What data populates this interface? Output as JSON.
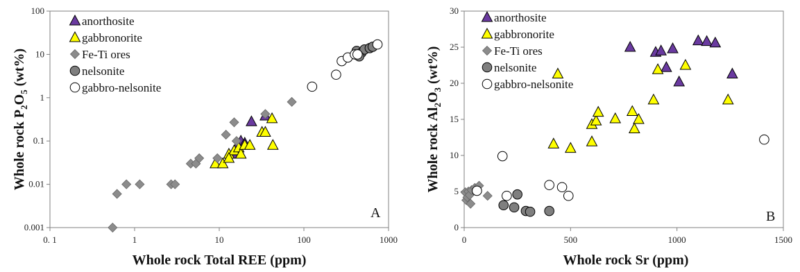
{
  "colors": {
    "anorthosite": "#6a3aa0",
    "gabbronorite": "#ffff00",
    "fe_ti_ores": "#8c8c8c",
    "nelsonite": "#7f7f7f",
    "gabbro_nelsonite": "#ffffff",
    "outline": "#000000"
  },
  "chart_data": [
    {
      "type": "scatter",
      "panel": "A",
      "xlabel": "Whole rock Total  REE (ppm)",
      "ylabel": "Whole rock  P2O5 (wt%)",
      "ylabel_parts": {
        "prefix": "Whole rock  P",
        "sub1": "2",
        "mid": "O",
        "sub2": "5",
        "suffix": " (wt%)"
      },
      "xscale": "log",
      "yscale": "log",
      "xlim": [
        0.1,
        1000
      ],
      "ylim": [
        0.001,
        100
      ],
      "x_ticks": [
        "0. 1",
        "1",
        "10",
        "100",
        "1000"
      ],
      "y_ticks": [
        "0.001",
        "0.01",
        "0.1",
        "1",
        "10",
        "100"
      ],
      "legend": [
        "anorthosite",
        "gabbronorite",
        "Fe-Ti ores",
        "nelsonite",
        "gabbro-nelsonite"
      ],
      "legend_position": "top-left",
      "series": [
        {
          "name": "anorthosite",
          "marker": "triangle",
          "color_key": "anorthosite",
          "points": [
            [
              24,
              0.28
            ],
            [
              35,
              0.38
            ],
            [
              18,
              0.1
            ],
            [
              20,
              0.09
            ],
            [
              16,
              0.07
            ],
            [
              15,
              0.05
            ]
          ]
        },
        {
          "name": "gabbronorite",
          "marker": "triangle",
          "color_key": "gabbronorite",
          "points": [
            [
              9,
              0.03
            ],
            [
              11,
              0.03
            ],
            [
              13,
              0.05
            ],
            [
              15,
              0.06
            ],
            [
              17,
              0.07
            ],
            [
              18,
              0.05
            ],
            [
              20,
              0.08
            ],
            [
              23,
              0.08
            ],
            [
              32,
              0.16
            ],
            [
              35,
              0.16
            ],
            [
              42,
              0.33
            ],
            [
              43,
              0.08
            ],
            [
              13,
              0.04
            ]
          ]
        },
        {
          "name": "Fe-Ti ores",
          "marker": "diamond",
          "color_key": "fe_ti_ores",
          "points": [
            [
              0.55,
              0.001
            ],
            [
              0.62,
              0.006
            ],
            [
              0.8,
              0.01
            ],
            [
              1.15,
              0.01
            ],
            [
              2.7,
              0.01
            ],
            [
              3.0,
              0.01
            ],
            [
              4.6,
              0.03
            ],
            [
              5.3,
              0.03
            ],
            [
              5.8,
              0.04
            ],
            [
              9.5,
              0.04
            ],
            [
              12,
              0.14
            ],
            [
              15,
              0.27
            ],
            [
              35,
              0.42
            ],
            [
              72,
              0.8
            ],
            [
              16,
              0.1
            ]
          ]
        },
        {
          "name": "nelsonite",
          "marker": "circle",
          "color_key": "nelsonite",
          "points": [
            [
              420,
              12
            ],
            [
              480,
              11
            ],
            [
              520,
              13
            ],
            [
              600,
              14
            ],
            [
              650,
              15
            ],
            [
              450,
              9
            ]
          ]
        },
        {
          "name": "gabbro-nelsonite",
          "marker": "circle",
          "color_key": "gabbro_nelsonite",
          "points": [
            [
              125,
              1.8
            ],
            [
              240,
              3.4
            ],
            [
              280,
              7
            ],
            [
              330,
              8.5
            ],
            [
              400,
              10
            ],
            [
              430,
              10
            ],
            [
              740,
              17
            ]
          ]
        }
      ]
    },
    {
      "type": "scatter",
      "panel": "B",
      "xlabel": "Whole rock  Sr (ppm)",
      "ylabel": "Whole rock  Al2O3 (wt%)",
      "ylabel_parts": {
        "prefix": "Whole rock  Al",
        "sub1": "2",
        "mid": "O",
        "sub2": "3",
        "suffix": " (wt%)"
      },
      "xscale": "linear",
      "yscale": "linear",
      "xlim": [
        0,
        1500
      ],
      "ylim": [
        0,
        30
      ],
      "x_ticks": [
        "0",
        "500",
        "1000",
        "1500"
      ],
      "y_ticks": [
        "0",
        "5",
        "10",
        "15",
        "20",
        "25",
        "30"
      ],
      "legend": [
        "anorthosite",
        "gabbronorite",
        "Fe-Ti ores",
        "nelsonite",
        "gabbro-nelsonite"
      ],
      "legend_position": "top-left",
      "series": [
        {
          "name": "anorthosite",
          "marker": "triangle",
          "color_key": "anorthosite",
          "points": [
            [
              780,
              25
            ],
            [
              900,
              24.3
            ],
            [
              925,
              24.5
            ],
            [
              950,
              22.2
            ],
            [
              980,
              24.8
            ],
            [
              1010,
              20.2
            ],
            [
              1100,
              25.9
            ],
            [
              1140,
              25.8
            ],
            [
              1180,
              25.6
            ],
            [
              1260,
              21.3
            ]
          ]
        },
        {
          "name": "gabbronorite",
          "marker": "triangle",
          "color_key": "gabbronorite",
          "points": [
            [
              440,
              21.3
            ],
            [
              420,
              11.6
            ],
            [
              500,
              11
            ],
            [
              600,
              11.9
            ],
            [
              600,
              14.3
            ],
            [
              620,
              14.8
            ],
            [
              630,
              16
            ],
            [
              710,
              15.1
            ],
            [
              790,
              16.1
            ],
            [
              800,
              13.7
            ],
            [
              820,
              15
            ],
            [
              890,
              17.7
            ],
            [
              910,
              21.9
            ],
            [
              1040,
              22.5
            ],
            [
              1240,
              17.7
            ]
          ]
        },
        {
          "name": "Fe-Ti ores",
          "marker": "diamond",
          "color_key": "fe_ti_ores",
          "points": [
            [
              5,
              4.9
            ],
            [
              10,
              3.8
            ],
            [
              15,
              4.2
            ],
            [
              20,
              5
            ],
            [
              25,
              4.5
            ],
            [
              30,
              3.3
            ],
            [
              35,
              5.2
            ],
            [
              50,
              5.5
            ],
            [
              70,
              5.8
            ],
            [
              110,
              4.4
            ]
          ]
        },
        {
          "name": "nelsonite",
          "marker": "circle",
          "color_key": "nelsonite",
          "points": [
            [
              185,
              3.1
            ],
            [
              235,
              2.8
            ],
            [
              250,
              4.6
            ],
            [
              290,
              2.3
            ],
            [
              310,
              2.2
            ],
            [
              400,
              2.3
            ]
          ]
        },
        {
          "name": "gabbro-nelsonite",
          "marker": "circle",
          "color_key": "gabbro_nelsonite",
          "points": [
            [
              60,
              5.1
            ],
            [
              180,
              9.9
            ],
            [
              200,
              4.4
            ],
            [
              400,
              5.9
            ],
            [
              460,
              5.6
            ],
            [
              490,
              4.4
            ],
            [
              1410,
              12.2
            ]
          ]
        }
      ]
    }
  ]
}
